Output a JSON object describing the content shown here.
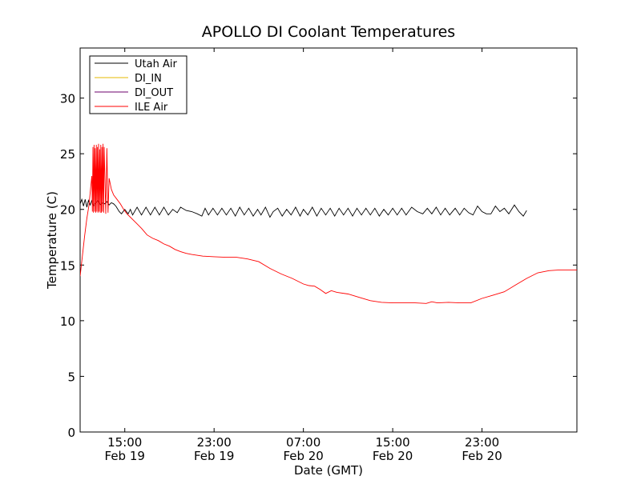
{
  "chart_data": {
    "type": "line",
    "title": "APOLLO DI Coolant Temperatures",
    "xlabel": "Date (GMT)",
    "ylabel": "Temperature (C)",
    "x_unit": "hours since Feb 19 11:00 GMT",
    "xlim": [
      0,
      44.5
    ],
    "ylim": [
      0,
      34.5
    ],
    "yticks": [
      0,
      5,
      10,
      15,
      20,
      25,
      30
    ],
    "xticks": [
      {
        "x": 4,
        "line1": "15:00",
        "line2": "Feb 19"
      },
      {
        "x": 12,
        "line1": "23:00",
        "line2": "Feb 19"
      },
      {
        "x": 20,
        "line1": "07:00",
        "line2": "Feb 20"
      },
      {
        "x": 28,
        "line1": "15:00",
        "line2": "Feb 20"
      },
      {
        "x": 36,
        "line1": "23:00",
        "line2": "Feb 20"
      }
    ],
    "legend_position": "top-left",
    "series": [
      {
        "name": "Utah Air",
        "color": "#000000",
        "points": [
          [
            0,
            20.5
          ],
          [
            0.15,
            20.9
          ],
          [
            0.3,
            20.3
          ],
          [
            0.45,
            20.9
          ],
          [
            0.6,
            20.2
          ],
          [
            0.75,
            20.8
          ],
          [
            0.9,
            20.4
          ],
          [
            1.05,
            20.8
          ],
          [
            1.2,
            20.3
          ],
          [
            1.4,
            20.6
          ],
          [
            1.6,
            20.8
          ],
          [
            1.8,
            20.4
          ],
          [
            2.0,
            20.6
          ],
          [
            2.2,
            20.5
          ],
          [
            2.4,
            20.7
          ],
          [
            2.6,
            20.4
          ],
          [
            2.8,
            20.6
          ],
          [
            3.0,
            20.5
          ],
          [
            3.2,
            20.3
          ],
          [
            3.5,
            19.8
          ],
          [
            3.7,
            19.6
          ],
          [
            4.0,
            20.0
          ],
          [
            4.3,
            19.6
          ],
          [
            4.5,
            20.0
          ],
          [
            4.7,
            19.5
          ],
          [
            5.1,
            20.2
          ],
          [
            5.5,
            19.5
          ],
          [
            5.9,
            20.2
          ],
          [
            6.3,
            19.5
          ],
          [
            6.7,
            20.2
          ],
          [
            7.1,
            19.5
          ],
          [
            7.5,
            20.2
          ],
          [
            7.9,
            19.5
          ],
          [
            8.3,
            20.0
          ],
          [
            8.7,
            19.7
          ],
          [
            9.0,
            20.2
          ],
          [
            9.5,
            19.9
          ],
          [
            10.0,
            19.8
          ],
          [
            10.5,
            19.6
          ],
          [
            10.9,
            19.4
          ],
          [
            11.2,
            20.1
          ],
          [
            11.5,
            19.5
          ],
          [
            11.9,
            20.1
          ],
          [
            12.3,
            19.5
          ],
          [
            12.7,
            20.1
          ],
          [
            13.1,
            19.5
          ],
          [
            13.5,
            20.1
          ],
          [
            13.9,
            19.4
          ],
          [
            14.3,
            20.2
          ],
          [
            14.7,
            19.5
          ],
          [
            15.1,
            20.1
          ],
          [
            15.5,
            19.4
          ],
          [
            15.9,
            20.0
          ],
          [
            16.2,
            19.5
          ],
          [
            16.6,
            20.2
          ],
          [
            17.0,
            19.3
          ],
          [
            17.3,
            19.8
          ],
          [
            17.7,
            20.1
          ],
          [
            18.1,
            19.4
          ],
          [
            18.5,
            20.0
          ],
          [
            18.9,
            19.5
          ],
          [
            19.3,
            20.2
          ],
          [
            19.7,
            19.4
          ],
          [
            20.0,
            20.0
          ],
          [
            20.4,
            19.5
          ],
          [
            20.8,
            20.2
          ],
          [
            21.2,
            19.4
          ],
          [
            21.6,
            20.1
          ],
          [
            22.0,
            19.5
          ],
          [
            22.4,
            20.1
          ],
          [
            22.8,
            19.4
          ],
          [
            23.2,
            20.1
          ],
          [
            23.6,
            19.5
          ],
          [
            24.0,
            20.1
          ],
          [
            24.4,
            19.4
          ],
          [
            24.8,
            20.1
          ],
          [
            25.2,
            19.5
          ],
          [
            25.6,
            20.1
          ],
          [
            26.0,
            19.5
          ],
          [
            26.4,
            20.1
          ],
          [
            26.8,
            19.4
          ],
          [
            27.2,
            20.0
          ],
          [
            27.6,
            19.5
          ],
          [
            28.0,
            20.1
          ],
          [
            28.4,
            19.5
          ],
          [
            28.8,
            20.1
          ],
          [
            29.2,
            19.5
          ],
          [
            29.7,
            20.2
          ],
          [
            30.2,
            19.8
          ],
          [
            30.7,
            19.6
          ],
          [
            31.1,
            20.1
          ],
          [
            31.5,
            19.6
          ],
          [
            31.9,
            20.2
          ],
          [
            32.3,
            19.5
          ],
          [
            32.7,
            20.1
          ],
          [
            33.1,
            19.5
          ],
          [
            33.6,
            20.1
          ],
          [
            34.0,
            19.5
          ],
          [
            34.4,
            20.1
          ],
          [
            34.8,
            19.7
          ],
          [
            35.2,
            19.5
          ],
          [
            35.6,
            20.3
          ],
          [
            36.0,
            19.8
          ],
          [
            36.4,
            19.6
          ],
          [
            36.8,
            19.6
          ],
          [
            37.2,
            20.3
          ],
          [
            37.6,
            19.8
          ],
          [
            38.0,
            20.1
          ],
          [
            38.4,
            19.6
          ],
          [
            38.9,
            20.4
          ],
          [
            39.3,
            19.8
          ],
          [
            39.7,
            19.4
          ],
          [
            40.0,
            19.9
          ]
        ]
      },
      {
        "name": "DI_IN",
        "color": "#e6b800",
        "points": []
      },
      {
        "name": "DI_OUT",
        "color": "#6b006b",
        "points": []
      },
      {
        "name": "ILE Air",
        "color": "#ff0000",
        "points": [
          [
            0,
            14.0
          ],
          [
            0.2,
            15.8
          ],
          [
            0.4,
            17.6
          ],
          [
            0.6,
            19.2
          ],
          [
            0.8,
            20.4
          ],
          [
            0.95,
            22.0
          ],
          [
            1.05,
            23.0
          ],
          [
            1.1,
            19.8
          ],
          [
            1.15,
            25.6
          ],
          [
            1.2,
            19.7
          ],
          [
            1.25,
            25.8
          ],
          [
            1.3,
            19.8
          ],
          [
            1.35,
            25.5
          ],
          [
            1.4,
            19.7
          ],
          [
            1.45,
            25.8
          ],
          [
            1.5,
            19.8
          ],
          [
            1.55,
            25.6
          ],
          [
            1.6,
            19.7
          ],
          [
            1.65,
            25.9
          ],
          [
            1.7,
            19.8
          ],
          [
            1.75,
            25.4
          ],
          [
            1.8,
            19.7
          ],
          [
            1.85,
            25.8
          ],
          [
            1.9,
            19.7
          ],
          [
            1.95,
            25.6
          ],
          [
            2.0,
            19.8
          ],
          [
            2.05,
            25.9
          ],
          [
            2.1,
            19.7
          ],
          [
            2.15,
            25.6
          ],
          [
            2.3,
            19.6
          ],
          [
            2.4,
            25.5
          ],
          [
            2.5,
            19.7
          ],
          [
            2.6,
            22.8
          ],
          [
            2.8,
            21.8
          ],
          [
            3.0,
            21.3
          ],
          [
            3.3,
            20.9
          ],
          [
            3.6,
            20.5
          ],
          [
            3.9,
            20.0
          ],
          [
            4.2,
            19.6
          ],
          [
            4.5,
            19.3
          ],
          [
            5.0,
            18.8
          ],
          [
            5.5,
            18.3
          ],
          [
            6.0,
            17.7
          ],
          [
            6.5,
            17.4
          ],
          [
            7.0,
            17.2
          ],
          [
            7.5,
            16.9
          ],
          [
            8.0,
            16.7
          ],
          [
            8.5,
            16.4
          ],
          [
            9.0,
            16.2
          ],
          [
            9.5,
            16.05
          ],
          [
            10.0,
            15.95
          ],
          [
            11.0,
            15.8
          ],
          [
            12.0,
            15.75
          ],
          [
            13.0,
            15.7
          ],
          [
            14.0,
            15.7
          ],
          [
            15.0,
            15.55
          ],
          [
            16.0,
            15.3
          ],
          [
            17.0,
            14.7
          ],
          [
            18.0,
            14.2
          ],
          [
            19.0,
            13.8
          ],
          [
            20.0,
            13.3
          ],
          [
            20.5,
            13.15
          ],
          [
            21.0,
            13.1
          ],
          [
            21.5,
            12.8
          ],
          [
            22.0,
            12.45
          ],
          [
            22.5,
            12.7
          ],
          [
            23.0,
            12.55
          ],
          [
            24.0,
            12.4
          ],
          [
            25.0,
            12.1
          ],
          [
            26.0,
            11.8
          ],
          [
            27.0,
            11.65
          ],
          [
            28.0,
            11.6
          ],
          [
            29.0,
            11.6
          ],
          [
            30.0,
            11.6
          ],
          [
            31.0,
            11.55
          ],
          [
            31.5,
            11.7
          ],
          [
            32.0,
            11.6
          ],
          [
            33.0,
            11.65
          ],
          [
            34.0,
            11.6
          ],
          [
            35.0,
            11.6
          ],
          [
            36.0,
            12.0
          ],
          [
            37.0,
            12.3
          ],
          [
            38.0,
            12.6
          ],
          [
            39.0,
            13.2
          ],
          [
            40.0,
            13.8
          ],
          [
            41.0,
            14.3
          ],
          [
            42.0,
            14.5
          ],
          [
            42.8,
            14.55
          ],
          [
            44.5,
            14.55
          ]
        ]
      }
    ]
  }
}
